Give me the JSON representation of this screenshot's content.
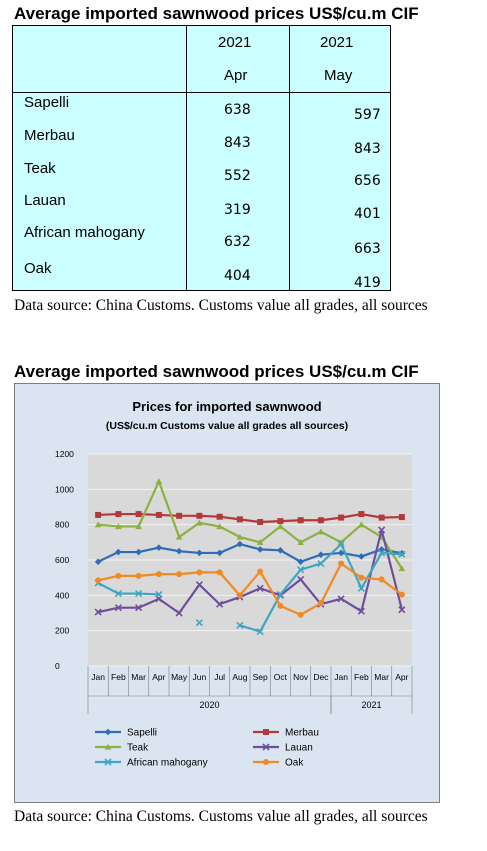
{
  "table_section": {
    "heading": "Average imported sawnwood prices US$/cu.m CIF",
    "columns": [
      {
        "year": "2021",
        "month": "Apr"
      },
      {
        "year": "2021",
        "month": "May"
      }
    ],
    "rows": [
      {
        "species": "Sapelli",
        "apr": "638",
        "may": "597"
      },
      {
        "species": "Merbau",
        "apr": "843",
        "may": "843"
      },
      {
        "species": "Teak",
        "apr": "552",
        "may": "656"
      },
      {
        "species": "Lauan",
        "apr": "319",
        "may": "401"
      },
      {
        "species": "African mahogany",
        "apr": "632",
        "may": "663"
      },
      {
        "species": "Oak",
        "apr": "404",
        "may": "419"
      }
    ],
    "source": "Data source: China Customs. Customs value all grades, all sources"
  },
  "chart_section": {
    "heading": "Average imported sawnwood prices US$/cu.m CIF",
    "source": "Data source: China Customs. Customs value all grades, all sources"
  },
  "chart_data": {
    "type": "line",
    "title": "Prices for imported sawnwood",
    "subtitle": "(US$/cu.m Customs value all grades all sources)",
    "categories": [
      "Jan",
      "Feb",
      "Mar",
      "Apr",
      "May",
      "Jun",
      "Jul",
      "Aug",
      "Sep",
      "Oct",
      "Nov",
      "Dec",
      "Jan",
      "Feb",
      "Mar",
      "Apr"
    ],
    "year_groups": [
      {
        "label": "2020",
        "start": 0,
        "end": 11
      },
      {
        "label": "2021",
        "start": 12,
        "end": 15
      }
    ],
    "ylim": [
      0,
      1200
    ],
    "yticks": [
      "0",
      "200",
      "400",
      "600",
      "800",
      "1000",
      "1200"
    ],
    "grid": true,
    "legend_position": "bottom",
    "series": [
      {
        "name": "Sapelli",
        "color": "#2e6db4",
        "marker": "diamond",
        "values": [
          590,
          645,
          645,
          670,
          650,
          640,
          640,
          690,
          660,
          655,
          590,
          630,
          640,
          620,
          660,
          638
        ]
      },
      {
        "name": "Merbau",
        "color": "#b03a3a",
        "marker": "square",
        "values": [
          855,
          860,
          860,
          855,
          850,
          850,
          845,
          830,
          815,
          820,
          825,
          825,
          840,
          860,
          840,
          843
        ]
      },
      {
        "name": "Teak",
        "color": "#8db140",
        "marker": "triangle",
        "values": [
          800,
          790,
          790,
          1045,
          730,
          810,
          790,
          730,
          700,
          790,
          700,
          760,
          700,
          800,
          730,
          552
        ]
      },
      {
        "name": "Lauan",
        "color": "#6f4e9c",
        "marker": "x",
        "values": [
          305,
          330,
          330,
          380,
          300,
          460,
          350,
          390,
          440,
          400,
          490,
          350,
          380,
          310,
          770,
          319
        ]
      },
      {
        "name": "African mahogany",
        "color": "#3ea6c4",
        "marker": "x",
        "values": [
          470,
          410,
          410,
          405,
          null,
          245,
          null,
          230,
          195,
          405,
          545,
          580,
          690,
          440,
          640,
          632
        ]
      },
      {
        "name": "Oak",
        "color": "#f08a24",
        "marker": "circle",
        "values": [
          485,
          510,
          510,
          520,
          520,
          530,
          530,
          400,
          535,
          340,
          290,
          355,
          580,
          500,
          490,
          404
        ]
      }
    ]
  }
}
